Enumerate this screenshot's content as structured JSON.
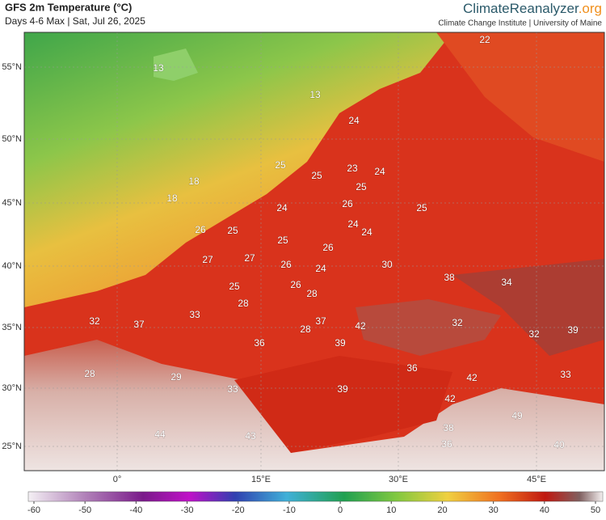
{
  "header": {
    "title": "GFS 2m Temperature (°C)",
    "subtitle": "Days 4-6 Max | Sat, Jul 26, 2025",
    "brand": "ClimateReanalyzer",
    "brand_suffix": ".org",
    "institute": "Climate Change Institute | University of Maine"
  },
  "map": {
    "latitude_labels": [
      "55°N",
      "50°N",
      "45°N",
      "40°N",
      "35°N",
      "30°N",
      "25°N"
    ],
    "longitude_labels": [
      "0°",
      "15°E",
      "30°E",
      "45°E"
    ],
    "temperature_labels": [
      22,
      13,
      13,
      24,
      25,
      25,
      23,
      24,
      18,
      25,
      18,
      26,
      24,
      25,
      24,
      24,
      26,
      25,
      25,
      26,
      27,
      27,
      26,
      24,
      30,
      38,
      34,
      25,
      26,
      28,
      28,
      33,
      32,
      37,
      37,
      42,
      32,
      32,
      39,
      28,
      36,
      39,
      36,
      42,
      33,
      28,
      29,
      33,
      39,
      42,
      49,
      38,
      44,
      43,
      36,
      40
    ]
  },
  "colorbar": {
    "lim": [
      -60,
      50
    ],
    "ticks": [
      -60,
      -50,
      -40,
      -30,
      -20,
      -10,
      0,
      10,
      20,
      30,
      40,
      50
    ]
  }
}
